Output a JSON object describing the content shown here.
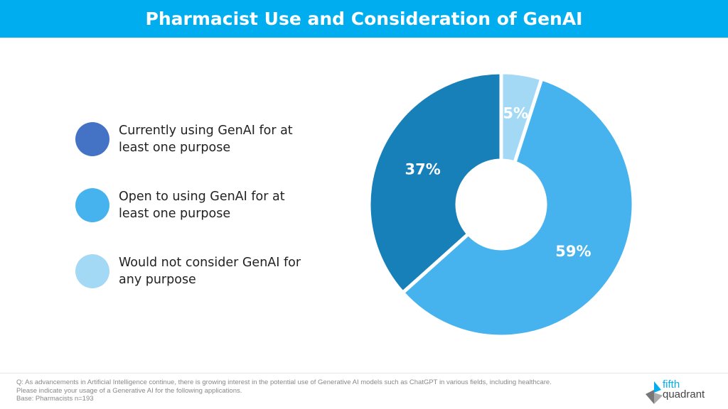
{
  "chart_data": {
    "type": "pie",
    "title": "Pharmacist Use and Consideration of GenAI",
    "donut": true,
    "slices": [
      {
        "label": "Would not consider GenAI for any purpose",
        "value": 5,
        "data_label": "5%",
        "color": "#A3D9F5"
      },
      {
        "label": "Open to using GenAI for at least one purpose",
        "value": 59,
        "data_label": "59%",
        "color": "#47B3EE"
      },
      {
        "label": "Currently using GenAI for at least one purpose",
        "value": 37,
        "data_label": "37%",
        "color": "#1780B9"
      }
    ],
    "start_angle": "12 o'clock",
    "direction": "clockwise",
    "legend_placement": "left",
    "legend": [
      {
        "label": "Currently using GenAI for at least one purpose",
        "color": "#4472C4"
      },
      {
        "label": "Open to using GenAI for at least one purpose",
        "color": "#47B3EE"
      },
      {
        "label": "Would not consider GenAI for any purpose",
        "color": "#A3D9F5"
      }
    ]
  },
  "header_color": "#00AEEF",
  "footer": {
    "question": "Q: As advancements in Artificial Intelligence continue, there is growing interest in the potential use of Generative AI models such as ChatGPT in various fields, including healthcare.",
    "instruction": "Please indicate your usage of a Generative AI for the following applications.",
    "base": "Base: Pharmacists n=193"
  },
  "logo": {
    "line1": "fifth",
    "line2": "quadrant"
  }
}
